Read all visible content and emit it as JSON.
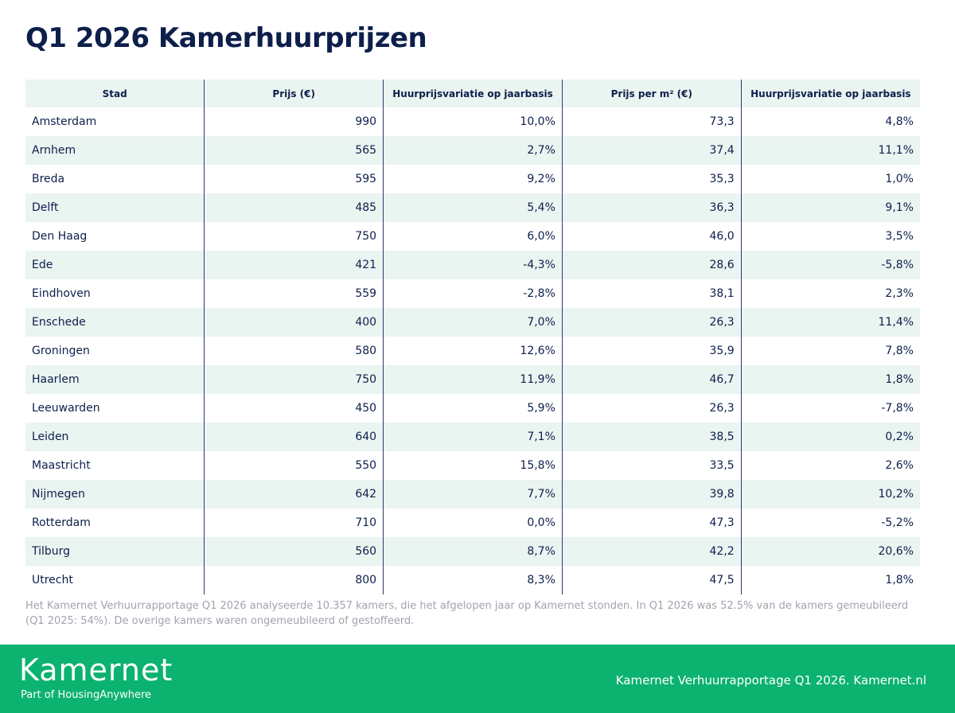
{
  "header": {
    "title": "Q1 2026 Kamerhuurprijzen"
  },
  "table": {
    "columns": [
      "Stad",
      "Prijs (€)",
      "Huurprijsvariatie op jaarbasis",
      "Prijs per m² (€)",
      "Huurprijsvariatie op jaarbasis"
    ],
    "rows": [
      [
        "Amsterdam",
        "990",
        "10,0%",
        "73,3",
        "4,8%"
      ],
      [
        "Arnhem",
        "565",
        "2,7%",
        "37,4",
        "11,1%"
      ],
      [
        "Breda",
        "595",
        "9,2%",
        "35,3",
        "1,0%"
      ],
      [
        "Delft",
        "485",
        "5,4%",
        "36,3",
        "9,1%"
      ],
      [
        "Den Haag",
        "750",
        "6,0%",
        "46,0",
        "3,5%"
      ],
      [
        "Ede",
        "421",
        "-4,3%",
        "28,6",
        "-5,8%"
      ],
      [
        "Eindhoven",
        "559",
        "-2,8%",
        "38,1",
        "2,3%"
      ],
      [
        "Enschede",
        "400",
        "7,0%",
        "26,3",
        "11,4%"
      ],
      [
        "Groningen",
        "580",
        "12,6%",
        "35,9",
        "7,8%"
      ],
      [
        "Haarlem",
        "750",
        "11,9%",
        "46,7",
        "1,8%"
      ],
      [
        "Leeuwarden",
        "450",
        "5,9%",
        "26,3",
        "-7,8%"
      ],
      [
        "Leiden",
        "640",
        "7,1%",
        "38,5",
        "0,2%"
      ],
      [
        "Maastricht",
        "550",
        "15,8%",
        "33,5",
        "2,6%"
      ],
      [
        "Nijmegen",
        "642",
        "7,7%",
        "39,8",
        "10,2%"
      ],
      [
        "Rotterdam",
        "710",
        "0,0%",
        "47,3",
        "-5,2%"
      ],
      [
        "Tilburg",
        "560",
        "8,7%",
        "42,2",
        "20,6%"
      ],
      [
        "Utrecht",
        "800",
        "8,3%",
        "47,5",
        "1,8%"
      ]
    ]
  },
  "footnote": "Het Kamernet Verhuurrapportage Q1 2026 analyseerde 10.357 kamers, die het afgelopen jaar op Kamernet stonden. In Q1 2026 was 52.5% van de kamers gemeubileerd (Q1 2025: 54%). De overige kamers waren ongemeubileerd of gestoffeerd.",
  "footer": {
    "logo": "Kamernet",
    "tagline": "Part of HousingAnywhere",
    "source": "Kamernet Verhuurrapportage Q1 2026. Kamernet.nl"
  }
}
